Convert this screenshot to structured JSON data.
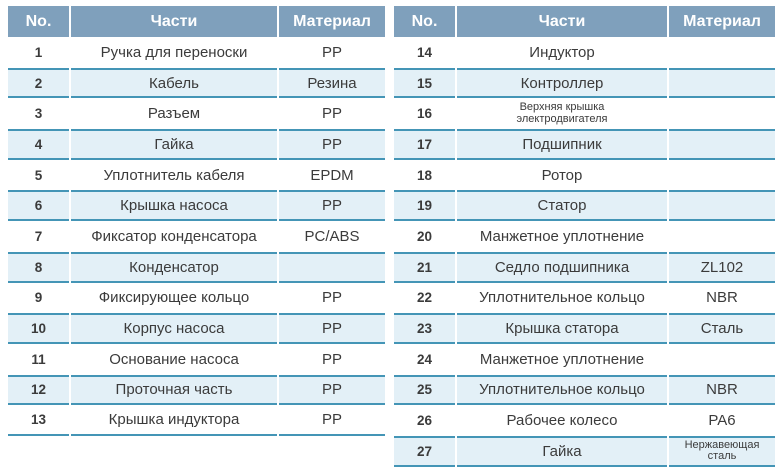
{
  "colors": {
    "header_bg": "#7FA0BC",
    "header_text": "#FFFFFF",
    "row_alt_bg": "#E3F0F7",
    "row_border": "#4495B6",
    "text": "#3B3B3B"
  },
  "tables": [
    {
      "headers": [
        "No.",
        "Части",
        "Материал"
      ],
      "rows": [
        {
          "no": "1",
          "part": "Ручка для переноски",
          "material": "PP"
        },
        {
          "no": "2",
          "part": "Кабель",
          "material": "Резина"
        },
        {
          "no": "3",
          "part": "Разъем",
          "material": "PP"
        },
        {
          "no": "4",
          "part": "Гайка",
          "material": "PP"
        },
        {
          "no": "5",
          "part": "Уплотнитель кабеля",
          "material": "EPDM"
        },
        {
          "no": "6",
          "part": "Крышка насоса",
          "material": "PP"
        },
        {
          "no": "7",
          "part": "Фиксатор конденсатора",
          "material": "PC/ABS"
        },
        {
          "no": "8",
          "part": "Конденсатор",
          "material": ""
        },
        {
          "no": "9",
          "part": "Фиксирующее кольцо",
          "material": "PP"
        },
        {
          "no": "10",
          "part": "Корпус насоса",
          "material": "PP"
        },
        {
          "no": "11",
          "part": "Основание насоса",
          "material": "PP"
        },
        {
          "no": "12",
          "part": "Проточная часть",
          "material": "PP"
        },
        {
          "no": "13",
          "part": "Крышка индуктора",
          "material": "PP"
        }
      ]
    },
    {
      "headers": [
        "No.",
        "Части",
        "Материал"
      ],
      "rows": [
        {
          "no": "14",
          "part": "Индуктор",
          "material": ""
        },
        {
          "no": "15",
          "part": "Контроллер",
          "material": ""
        },
        {
          "no": "16",
          "part": "Верхняя крышка\nэлектродвигателя",
          "material": "",
          "part_small": true
        },
        {
          "no": "17",
          "part": "Подшипник",
          "material": ""
        },
        {
          "no": "18",
          "part": "Ротор",
          "material": ""
        },
        {
          "no": "19",
          "part": "Статор",
          "material": ""
        },
        {
          "no": "20",
          "part": "Манжетное уплотнение",
          "material": ""
        },
        {
          "no": "21",
          "part": "Седло подшипника",
          "material": "ZL102"
        },
        {
          "no": "22",
          "part": "Уплотнительное кольцо",
          "material": "NBR"
        },
        {
          "no": "23",
          "part": "Крышка статора",
          "material": "Сталь"
        },
        {
          "no": "24",
          "part": "Манжетное уплотнение",
          "material": ""
        },
        {
          "no": "25",
          "part": "Уплотнительное кольцо",
          "material": "NBR"
        },
        {
          "no": "26",
          "part": "Рабочее колесо",
          "material": "PA6"
        },
        {
          "no": "27",
          "part": "Гайка",
          "material": "Нержавеющая\nсталь",
          "material_small": true
        }
      ]
    }
  ]
}
